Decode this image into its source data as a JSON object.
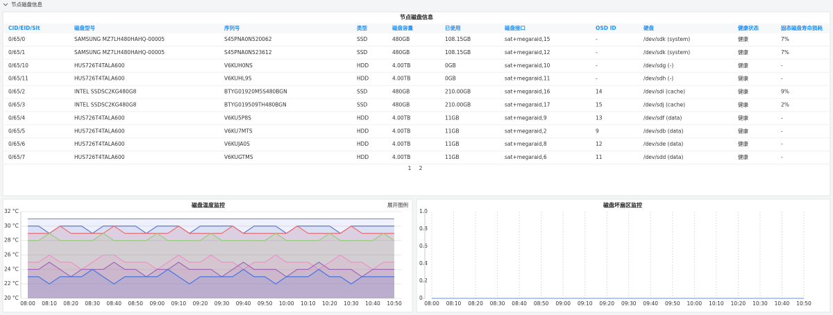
{
  "header": {
    "title": "节点磁盘信息"
  },
  "table": {
    "title": "节点磁盘信息",
    "columns": [
      "CID/EID/Slt",
      "磁盘型号",
      "序列号",
      "类型",
      "磁盘容量",
      "已使用",
      "磁盘接口",
      "OSD ID",
      "硬盘",
      "健康状态",
      "固态磁盘寿命损耗"
    ],
    "rows": [
      [
        "0/65/0",
        "SAMSUNG MZ7LH480HAHQ-00005",
        "S45PNA0N520062",
        "SSD",
        "480GB",
        "108.15GB",
        "sat+megaraid,15",
        "-",
        "/dev/sdk (system)",
        "健康",
        "7%"
      ],
      [
        "0/65/1",
        "SAMSUNG MZ7LH480HAHQ-00005",
        "S45PNA0N523612",
        "SSD",
        "480GB",
        "108.15GB",
        "sat+megaraid,12",
        "-",
        "/dev/sdk (system)",
        "健康",
        "7%"
      ],
      [
        "0/65/10",
        "HUS726T4TALA600",
        "V6KUH0NS",
        "HDD",
        "4.00TB",
        "0GB",
        "sat+megaraid,10",
        "-",
        "/dev/sdg (-)",
        "健康",
        "-"
      ],
      [
        "0/65/11",
        "HUS726T4TALA600",
        "V6KUHL9S",
        "HDD",
        "4.00TB",
        "0GB",
        "sat+megaraid,11",
        "-",
        "/dev/sdh (-)",
        "健康",
        "-"
      ],
      [
        "0/65/2",
        "INTEL SSDSC2KG480G8",
        "BTYG01920M5S480BGN",
        "SSD",
        "480GB",
        "210.00GB",
        "sat+megaraid,16",
        "14",
        "/dev/sdi (cache)",
        "健康",
        "9%"
      ],
      [
        "0/65/3",
        "INTEL SSDSC2KG480G8",
        "BTYG019509TH480BGN",
        "SSD",
        "480GB",
        "210.00GB",
        "sat+megaraid,17",
        "15",
        "/dev/sdj (cache)",
        "健康",
        "2%"
      ],
      [
        "0/65/4",
        "HUS726T4TALA600",
        "V6KU5P8S",
        "HDD",
        "4.00TB",
        "11GB",
        "sat+megaraid,9",
        "13",
        "/dev/sdf (data)",
        "健康",
        "-"
      ],
      [
        "0/65/5",
        "HUS726T4TALA600",
        "V6KU7MTS",
        "HDD",
        "4.00TB",
        "11GB",
        "sat+megaraid,2",
        "9",
        "/dev/sdb (data)",
        "健康",
        "-"
      ],
      [
        "0/65/6",
        "HUS726T4TALA600",
        "V6KUJA0S",
        "HDD",
        "4.00TB",
        "11GB",
        "sat+megaraid,8",
        "12",
        "/dev/sde (data)",
        "健康",
        "-"
      ],
      [
        "0/65/7",
        "HUS726T4TALA600",
        "V6KUGTMS",
        "HDD",
        "4.00TB",
        "11GB",
        "sat+megaraid,6",
        "11",
        "/dev/sdd (data)",
        "健康",
        "-"
      ]
    ]
  },
  "pagination": [
    1,
    2
  ],
  "chart_data": [
    {
      "type": "line",
      "title": "磁盘温度监控",
      "legend_toggle": "展开图例",
      "area": true,
      "grid": true,
      "categories": [
        "08:00",
        null,
        "08:10",
        null,
        "08:20",
        null,
        "08:30",
        null,
        "08:40",
        null,
        "08:50",
        null,
        "09:00",
        null,
        "09:10",
        null,
        "09:20",
        null,
        "09:30",
        null,
        "09:40",
        null,
        "09:50",
        null,
        "10:00",
        null,
        "10:10",
        null,
        "10:20",
        null,
        "10:30",
        null,
        "10:40",
        null,
        "10:50"
      ],
      "ylim": [
        20,
        32
      ],
      "yticks": [
        {
          "value": 20,
          "label": "20 °C"
        },
        {
          "value": 22,
          "label": "22 °C"
        },
        {
          "value": 24,
          "label": "24 °C"
        },
        {
          "value": 26,
          "label": "26 °C"
        },
        {
          "value": 28,
          "label": "28 °C"
        },
        {
          "value": 30,
          "label": "30 °C"
        },
        {
          "value": 32,
          "label": "32 °C"
        }
      ],
      "series": [
        {
          "color": "#7b8cde",
          "values": [
            31,
            31,
            31,
            31,
            31,
            31,
            31,
            31,
            31,
            31,
            31,
            31,
            31,
            31,
            31,
            31,
            31,
            31,
            31,
            31,
            31,
            31,
            31,
            31,
            31,
            31,
            31,
            31,
            31,
            31,
            31,
            31,
            31,
            31,
            31
          ]
        },
        {
          "color": "#5470c6",
          "values": [
            30,
            30,
            29,
            30,
            30,
            30,
            29,
            30,
            30,
            30,
            30,
            29,
            30,
            30,
            30,
            29,
            30,
            30,
            30,
            30,
            29,
            30,
            30,
            30,
            29,
            30,
            30,
            30,
            30,
            29,
            30,
            30,
            30,
            30,
            30
          ]
        },
        {
          "color": "#ee6666",
          "values": [
            29,
            29,
            29,
            30,
            29,
            29,
            29,
            29,
            30,
            29,
            29,
            29,
            29,
            29,
            30,
            29,
            29,
            29,
            29,
            30,
            29,
            29,
            29,
            29,
            29,
            30,
            29,
            29,
            29,
            29,
            30,
            29,
            29,
            29,
            29
          ]
        },
        {
          "color": "#91cc75",
          "values": [
            28,
            28,
            29,
            28,
            28,
            28,
            28,
            29,
            28,
            28,
            28,
            28,
            29,
            28,
            28,
            28,
            28,
            29,
            28,
            28,
            28,
            28,
            28,
            29,
            28,
            28,
            28,
            28,
            29,
            28,
            28,
            28,
            28,
            29,
            28
          ]
        },
        {
          "color": "#f08cc8",
          "values": [
            25,
            25,
            26,
            25,
            25,
            24,
            25,
            26,
            26,
            25,
            25,
            25,
            24,
            25,
            26,
            25,
            25,
            26,
            25,
            25,
            24,
            25,
            25,
            26,
            25,
            25,
            25,
            24,
            25,
            26,
            25,
            25,
            24,
            25,
            25
          ]
        },
        {
          "color": "#9a60b4",
          "values": [
            24,
            24,
            25,
            24,
            23,
            24,
            24,
            24,
            25,
            24,
            24,
            23,
            24,
            24,
            25,
            24,
            24,
            24,
            23,
            24,
            25,
            24,
            24,
            24,
            23,
            24,
            24,
            25,
            24,
            24,
            24,
            23,
            24,
            24,
            24
          ]
        },
        {
          "color": "#3b6fe0",
          "values": [
            23,
            23,
            22,
            23,
            23,
            23,
            24,
            23,
            22,
            23,
            23,
            23,
            23,
            24,
            23,
            22,
            23,
            23,
            23,
            23,
            24,
            23,
            23,
            22,
            23,
            23,
            23,
            24,
            23,
            23,
            22,
            23,
            23,
            23,
            23
          ]
        }
      ]
    },
    {
      "type": "line",
      "title": "磁盘坏扇区监控",
      "area": false,
      "grid": false,
      "x_grid": true,
      "categories": [
        "08:00",
        null,
        "08:10",
        null,
        "08:20",
        null,
        "08:30",
        null,
        "08:40",
        null,
        "08:50",
        null,
        "09:00",
        null,
        "09:10",
        null,
        "09:20",
        null,
        "09:30",
        null,
        "09:40",
        null,
        "09:50",
        null,
        "10:00",
        null,
        "10:10",
        null,
        "10:20",
        null,
        "10:30",
        null,
        "10:40",
        null,
        "10:50"
      ],
      "ylim": [
        0,
        1
      ],
      "yticks": [
        0,
        0.2,
        0.4,
        0.6,
        0.8,
        {
          "value": 1,
          "label": "1.0"
        }
      ],
      "series": [
        {
          "color": "#5b8ff9",
          "values": [
            0,
            0,
            0,
            0,
            0,
            0,
            0,
            0,
            0,
            0,
            0,
            0,
            0,
            0,
            0,
            0,
            0,
            0,
            0,
            0,
            0,
            0,
            0,
            0,
            0,
            0,
            0,
            0,
            0,
            0,
            0,
            0,
            0,
            0,
            0
          ]
        }
      ]
    }
  ]
}
